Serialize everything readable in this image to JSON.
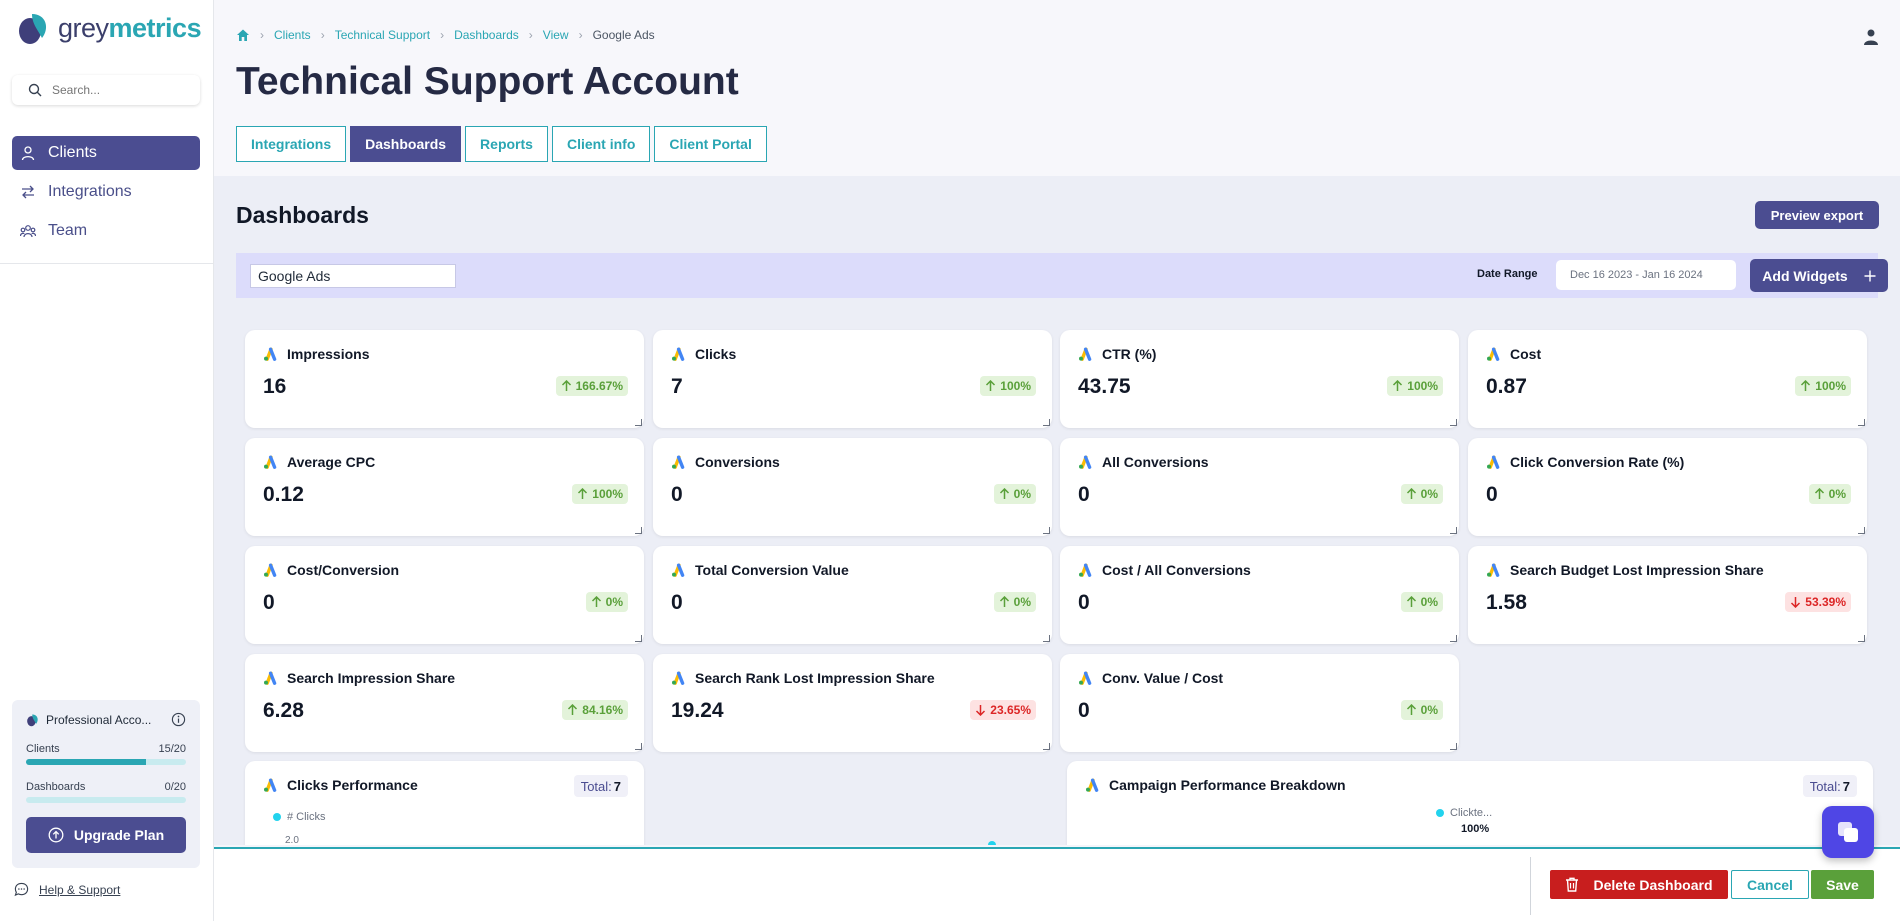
{
  "brand": {
    "grey": "grey",
    "metrics": "metrics"
  },
  "search": {
    "placeholder": "Search..."
  },
  "nav": [
    {
      "label": "Clients",
      "icon": "user-icon",
      "active": true
    },
    {
      "label": "Integrations",
      "icon": "arrows-swap-icon",
      "active": false
    },
    {
      "label": "Team",
      "icon": "team-icon",
      "active": false
    }
  ],
  "plan": {
    "name": "Professional Acco...",
    "clients_label": "Clients",
    "clients_value": "15/20",
    "clients_fraction": 0.75,
    "dashboards_label": "Dashboards",
    "dashboards_value": "0/20",
    "dashboards_fraction": 0,
    "upgrade_label": "Upgrade Plan"
  },
  "help_label": "Help & Support",
  "breadcrumb": [
    "Clients",
    "Technical Support",
    "Dashboards",
    "View",
    "Google Ads"
  ],
  "page_title": "Technical Support Account",
  "tabs": [
    "Integrations",
    "Dashboards",
    "Reports",
    "Client info",
    "Client Portal"
  ],
  "section_title": "Dashboards",
  "preview_export_label": "Preview export",
  "toolbar": {
    "dashboard_name": "Google Ads",
    "date_range_label": "Date Range",
    "date_range_value": "Dec 16 2023 - Jan 16 2024",
    "add_widgets_label": "Add Widgets"
  },
  "metrics": [
    {
      "title": "Impressions",
      "value": "16",
      "change": "166.67%",
      "dir": "up"
    },
    {
      "title": "Clicks",
      "value": "7",
      "change": "100%",
      "dir": "up"
    },
    {
      "title": "CTR (%)",
      "value": "43.75",
      "change": "100%",
      "dir": "up"
    },
    {
      "title": "Cost",
      "value": "0.87",
      "change": "100%",
      "dir": "up"
    },
    {
      "title": "Average CPC",
      "value": "0.12",
      "change": "100%",
      "dir": "up"
    },
    {
      "title": "Conversions",
      "value": "0",
      "change": "0%",
      "dir": "up"
    },
    {
      "title": "All Conversions",
      "value": "0",
      "change": "0%",
      "dir": "up"
    },
    {
      "title": "Click Conversion Rate (%)",
      "value": "0",
      "change": "0%",
      "dir": "up"
    },
    {
      "title": "Cost/Conversion",
      "value": "0",
      "change": "0%",
      "dir": "up"
    },
    {
      "title": "Total Conversion Value",
      "value": "0",
      "change": "0%",
      "dir": "up"
    },
    {
      "title": "Cost / All Conversions",
      "value": "0",
      "change": "0%",
      "dir": "up"
    },
    {
      "title": "Search Budget Lost Impression Share",
      "value": "1.58",
      "change": "53.39%",
      "dir": "down"
    },
    {
      "title": "Search Impression Share",
      "value": "6.28",
      "change": "84.16%",
      "dir": "up"
    },
    {
      "title": "Search Rank Lost Impression Share",
      "value": "19.24",
      "change": "23.65%",
      "dir": "down"
    },
    {
      "title": "Conv. Value / Cost",
      "value": "0",
      "change": "0%",
      "dir": "up"
    }
  ],
  "charts": {
    "clicks": {
      "title": "Clicks Performance",
      "total_label": "Total:",
      "total_value": "7",
      "legend": "# Clicks",
      "tick": "2.0"
    },
    "campaign": {
      "title": "Campaign Performance Breakdown",
      "total_label": "Total:",
      "total_value": "7",
      "legend": "Clickte...",
      "percent": "100%"
    }
  },
  "footer": {
    "delete_label": "Delete Dashboard",
    "cancel_label": "Cancel",
    "save_label": "Save"
  },
  "colors": {
    "primary": "#4b4d91",
    "teal": "#2aa6b3",
    "danger": "#c81e1e",
    "success": "#5aa03a"
  }
}
